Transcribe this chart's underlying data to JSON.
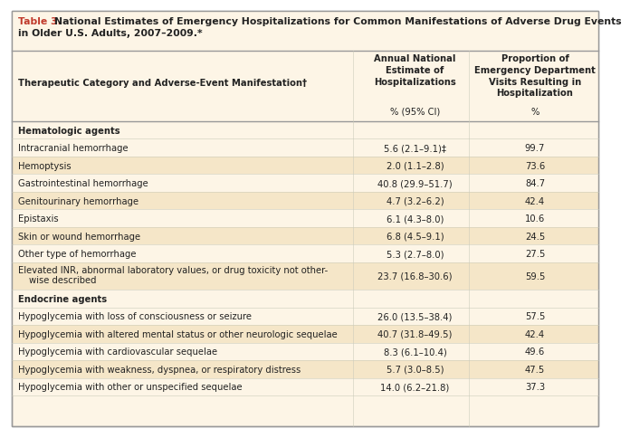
{
  "title_bold": "Table 3.",
  "title_rest": " National Estimates of Emergency Hospitalizations for Common Manifestations of Adverse Drug Events in Older U.S. Adults, 2007–2009.*",
  "col1_header": "Therapeutic Category and Adverse-Event Manifestation†",
  "col2_header": "Annual National\nEstimate of\nHospitalizations",
  "col3_header": "Proportion of\nEmergency Department\nVisits Resulting in\nHospitalization",
  "col2_subheader": "% (95% CI)",
  "col3_subheader": "%",
  "sections": [
    {
      "section_name": "Hematologic agents",
      "rows": [
        {
          "label": "Intracranial hemorrhage",
          "col2": "5.6 (2.1–9.1)‡",
          "col3": "99.7",
          "two_line": false
        },
        {
          "label": "Hemoptysis",
          "col2": "2.0 (1.1–2.8)",
          "col3": "73.6",
          "two_line": false
        },
        {
          "label": "Gastrointestinal hemorrhage",
          "col2": "40.8 (29.9–51.7)",
          "col3": "84.7",
          "two_line": false
        },
        {
          "label": "Genitourinary hemorrhage",
          "col2": "4.7 (3.2–6.2)",
          "col3": "42.4",
          "two_line": false
        },
        {
          "label": "Epistaxis",
          "col2": "6.1 (4.3–8.0)",
          "col3": "10.6",
          "two_line": false
        },
        {
          "label": "Skin or wound hemorrhage",
          "col2": "6.8 (4.5–9.1)",
          "col3": "24.5",
          "two_line": false
        },
        {
          "label": "Other type of hemorrhage",
          "col2": "5.3 (2.7–8.0)",
          "col3": "27.5",
          "two_line": false
        },
        {
          "label": "Elevated INR, abnormal laboratory values, or drug toxicity not other-\n   wise described",
          "col2": "23.7 (16.8–30.6)",
          "col3": "59.5",
          "two_line": true
        }
      ]
    },
    {
      "section_name": "Endocrine agents",
      "rows": [
        {
          "label": "Hypoglycemia with loss of consciousness or seizure",
          "col2": "26.0 (13.5–38.4)",
          "col3": "57.5",
          "two_line": false
        },
        {
          "label": "Hypoglycemia with altered mental status or other neurologic sequelae",
          "col2": "40.7 (31.8–49.5)",
          "col3": "42.4",
          "two_line": false
        },
        {
          "label": "Hypoglycemia with cardiovascular sequelae",
          "col2": "8.3 (6.1–10.4)",
          "col3": "49.6",
          "two_line": false
        },
        {
          "label": "Hypoglycemia with weakness, dyspnea, or respiratory distress",
          "col2": "5.7 (3.0–8.5)",
          "col3": "47.5",
          "two_line": false
        },
        {
          "label": "Hypoglycemia with other or unspecified sequelae",
          "col2": "14.0 (6.2–21.8)",
          "col3": "37.3",
          "two_line": false
        }
      ]
    }
  ],
  "bg_cream": "#fdf5e6",
  "bg_tan": "#f5e6c8",
  "bg_white": "#ffffff",
  "title_red": "#c0392b",
  "border_gray": "#999999",
  "line_gray": "#aaaaaa",
  "text_dark": "#222222",
  "font_size": 7.2,
  "title_font_size": 7.8,
  "header_font_size": 7.2
}
